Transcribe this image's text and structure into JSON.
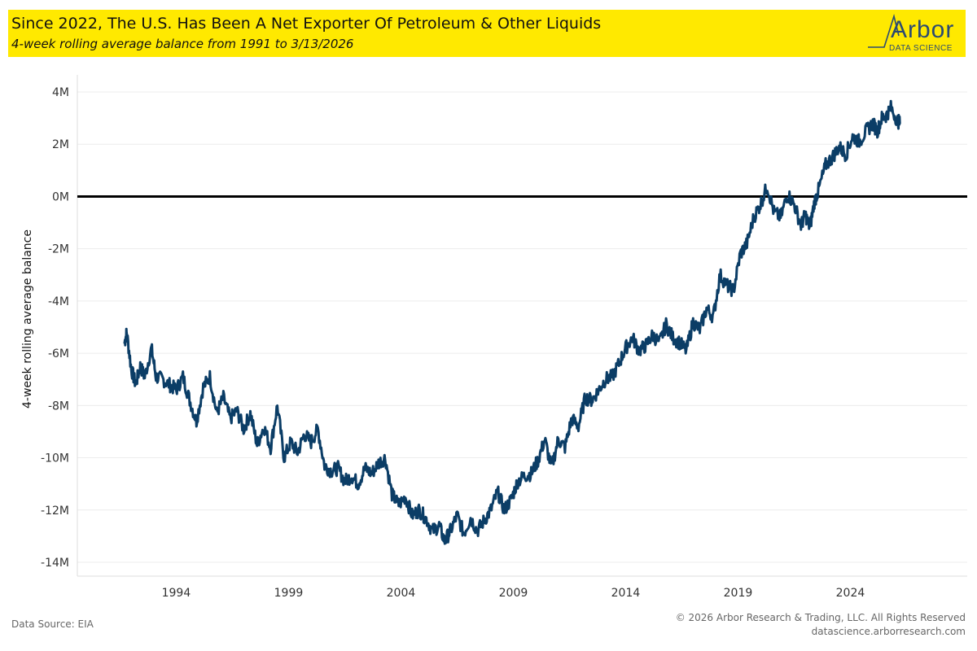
{
  "header": {
    "title": "Since 2022, The U.S. Has Been A Net Exporter Of Petroleum & Other Liquids",
    "subtitle": "4-week rolling average balance from 1991 to 3/13/2026"
  },
  "logo": {
    "brand": "Arbor",
    "sub": "DATA SCIENCE"
  },
  "footer": {
    "source": "Data Source: EIA",
    "copyright": "© 2026 Arbor Research & Trading, LLC. All Rights Reserved",
    "website": "datascience.arborresearch.com"
  },
  "colors": {
    "banner": "#ffe900",
    "line": "#0b3d66",
    "zero_line": "#000000",
    "grid": "#ececec",
    "logo": "#2b4a72"
  },
  "chart_data": {
    "type": "line",
    "title": "Since 2022, The U.S. Has Been A Net Exporter Of Petroleum & Other Liquids",
    "subtitle": "4-week rolling average balance from 1991 to 3/13/2026",
    "xlabel": "",
    "ylabel": "4-week rolling average balance",
    "xlim": [
      1989.6,
      2029.2
    ],
    "ylim": [
      -14.5,
      4.5
    ],
    "x_ticks": [
      1994,
      1999,
      2004,
      2009,
      2014,
      2019,
      2024
    ],
    "x_tick_labels": [
      "1994",
      "1999",
      "2004",
      "2009",
      "2014",
      "2019",
      "2024"
    ],
    "y_ticks": [
      4,
      2,
      0,
      -2,
      -4,
      -6,
      -8,
      -10,
      -12,
      -14
    ],
    "y_tick_labels": [
      "4M",
      "2M",
      "0M",
      "-2M",
      "-4M",
      "-6M",
      "-8M",
      "-10M",
      "-12M",
      "-14M"
    ],
    "reference_line": 0,
    "grid": true,
    "series": [
      {
        "name": "4-week rolling average balance",
        "x": [
          1991.7,
          1991.8,
          1992.0,
          1992.2,
          1992.4,
          1992.6,
          1992.9,
          1993.1,
          1993.4,
          1993.7,
          1994.0,
          1994.3,
          1994.6,
          1994.9,
          1995.2,
          1995.5,
          1995.8,
          1996.1,
          1996.4,
          1996.7,
          1997.0,
          1997.3,
          1997.6,
          1997.9,
          1998.2,
          1998.5,
          1998.8,
          1999.1,
          1999.4,
          1999.7,
          2000.0,
          2000.3,
          2000.6,
          2000.9,
          2001.2,
          2001.5,
          2001.8,
          2002.1,
          2002.4,
          2002.7,
          2003.0,
          2003.3,
          2003.6,
          2003.9,
          2004.2,
          2004.5,
          2004.8,
          2005.1,
          2005.4,
          2005.7,
          2005.95,
          2006.2,
          2006.5,
          2006.8,
          2007.1,
          2007.4,
          2007.7,
          2008.0,
          2008.3,
          2008.6,
          2008.9,
          2009.2,
          2009.5,
          2009.8,
          2010.1,
          2010.4,
          2010.7,
          2011.0,
          2011.3,
          2011.6,
          2011.9,
          2012.2,
          2012.5,
          2012.8,
          2013.1,
          2013.4,
          2013.7,
          2014.0,
          2014.3,
          2014.6,
          2014.9,
          2015.2,
          2015.5,
          2015.8,
          2016.1,
          2016.4,
          2016.7,
          2017.0,
          2017.3,
          2017.6,
          2017.9,
          2018.2,
          2018.5,
          2018.8,
          2019.1,
          2019.4,
          2019.7,
          2020.0,
          2020.3,
          2020.6,
          2020.9,
          2021.2,
          2021.5,
          2021.8,
          2022.0,
          2022.2,
          2022.4,
          2022.6,
          2022.9,
          2023.2,
          2023.5,
          2023.8,
          2024.1,
          2024.4,
          2024.7,
          2025.0,
          2025.2,
          2025.4,
          2025.6,
          2025.8,
          2026.1,
          2026.2
        ],
        "values": [
          -5.6,
          -5.2,
          -6.6,
          -7.2,
          -6.5,
          -6.9,
          -5.8,
          -6.9,
          -7.0,
          -7.2,
          -7.4,
          -6.9,
          -7.8,
          -8.6,
          -7.3,
          -6.9,
          -8.3,
          -7.7,
          -8.5,
          -8.2,
          -8.9,
          -8.3,
          -9.5,
          -8.8,
          -9.6,
          -8.0,
          -10.0,
          -9.4,
          -9.8,
          -9.1,
          -9.4,
          -8.9,
          -10.3,
          -10.5,
          -10.4,
          -10.9,
          -10.7,
          -11.0,
          -10.4,
          -10.6,
          -10.2,
          -10.0,
          -11.4,
          -11.8,
          -11.5,
          -12.2,
          -12.0,
          -12.3,
          -12.8,
          -12.6,
          -13.2,
          -12.8,
          -12.2,
          -12.9,
          -12.3,
          -12.8,
          -12.4,
          -12.0,
          -11.3,
          -12.0,
          -11.6,
          -10.9,
          -10.7,
          -10.6,
          -10.1,
          -9.3,
          -10.4,
          -9.3,
          -9.6,
          -8.5,
          -8.8,
          -7.7,
          -7.8,
          -7.4,
          -7.0,
          -6.9,
          -6.4,
          -5.8,
          -5.4,
          -5.9,
          -5.7,
          -5.3,
          -5.6,
          -4.9,
          -5.4,
          -5.6,
          -5.9,
          -4.8,
          -5.1,
          -4.3,
          -4.6,
          -3.0,
          -3.4,
          -3.6,
          -2.2,
          -1.8,
          -0.8,
          -0.3,
          0.4,
          -0.6,
          -0.8,
          0.1,
          -0.3,
          -1.1,
          -0.7,
          -1.2,
          -0.2,
          0.3,
          1.2,
          1.5,
          1.9,
          1.6,
          2.3,
          2.1,
          2.5,
          2.8,
          2.5,
          3.0,
          3.1,
          3.4,
          2.9,
          2.8
        ]
      }
    ]
  }
}
